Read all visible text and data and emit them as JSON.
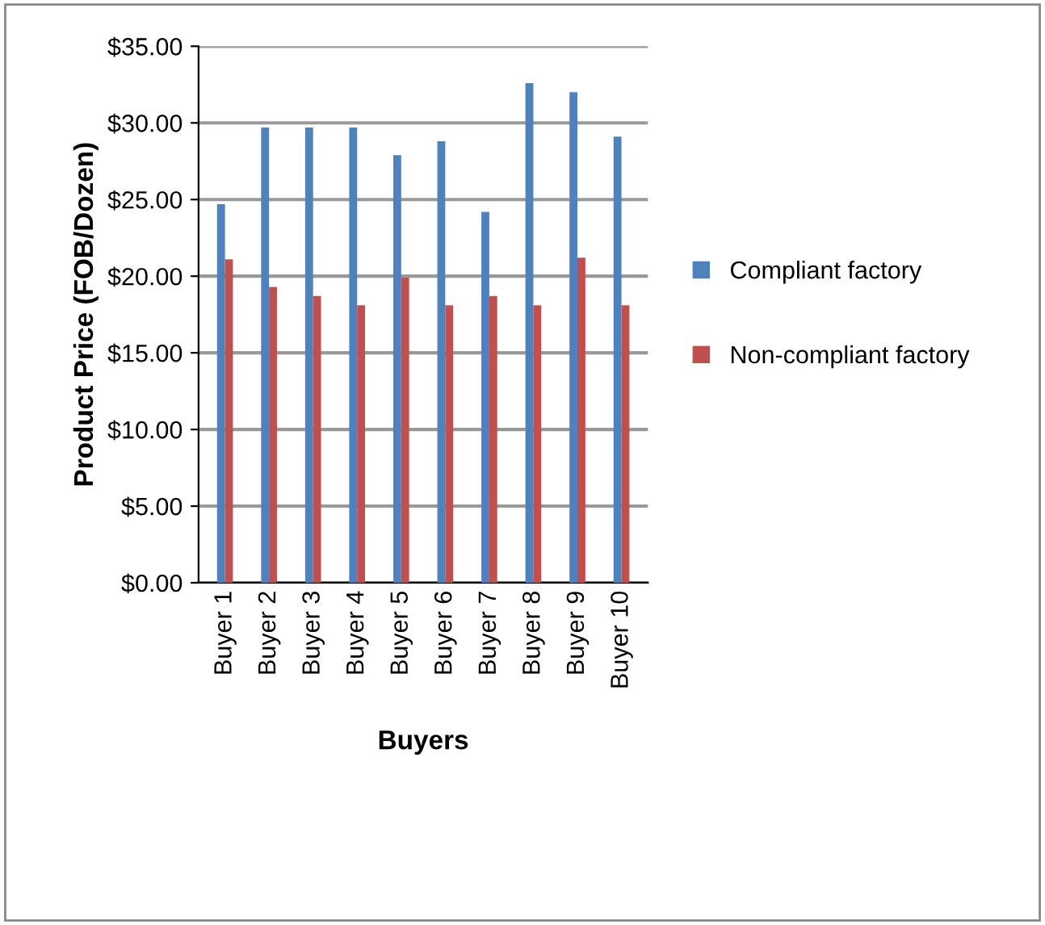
{
  "chart_data": {
    "type": "bar",
    "xlabel": "Buyers",
    "ylabel": "Product Price (FOB/Dozen)",
    "categories": [
      "Buyer 1",
      "Buyer 2",
      "Buyer 3",
      "Buyer 4",
      "Buyer 5",
      "Buyer 6",
      "Buyer 7",
      "Buyer 8",
      "Buyer 9",
      "Buyer 10"
    ],
    "series": [
      {
        "name": "Compliant factory",
        "color": "#4f81bd",
        "values": [
          24.7,
          29.7,
          29.7,
          29.7,
          27.9,
          28.8,
          24.2,
          32.6,
          32.0,
          29.1
        ]
      },
      {
        "name": "Non-compliant factory",
        "color": "#c0504d",
        "values": [
          21.1,
          19.3,
          18.7,
          18.1,
          19.9,
          18.1,
          18.7,
          18.1,
          21.2,
          18.1
        ]
      }
    ],
    "ylim": [
      0,
      35
    ],
    "yticks": [
      {
        "value": 0,
        "label": "$0.00"
      },
      {
        "value": 5,
        "label": "$5.00"
      },
      {
        "value": 10,
        "label": "$10.00"
      },
      {
        "value": 15,
        "label": "$15.00"
      },
      {
        "value": 20,
        "label": "$20.00"
      },
      {
        "value": 25,
        "label": "$25.00"
      },
      {
        "value": 30,
        "label": "$30.00"
      },
      {
        "value": 35,
        "label": "$35.00"
      }
    ],
    "grid": "y",
    "legend": "right"
  }
}
